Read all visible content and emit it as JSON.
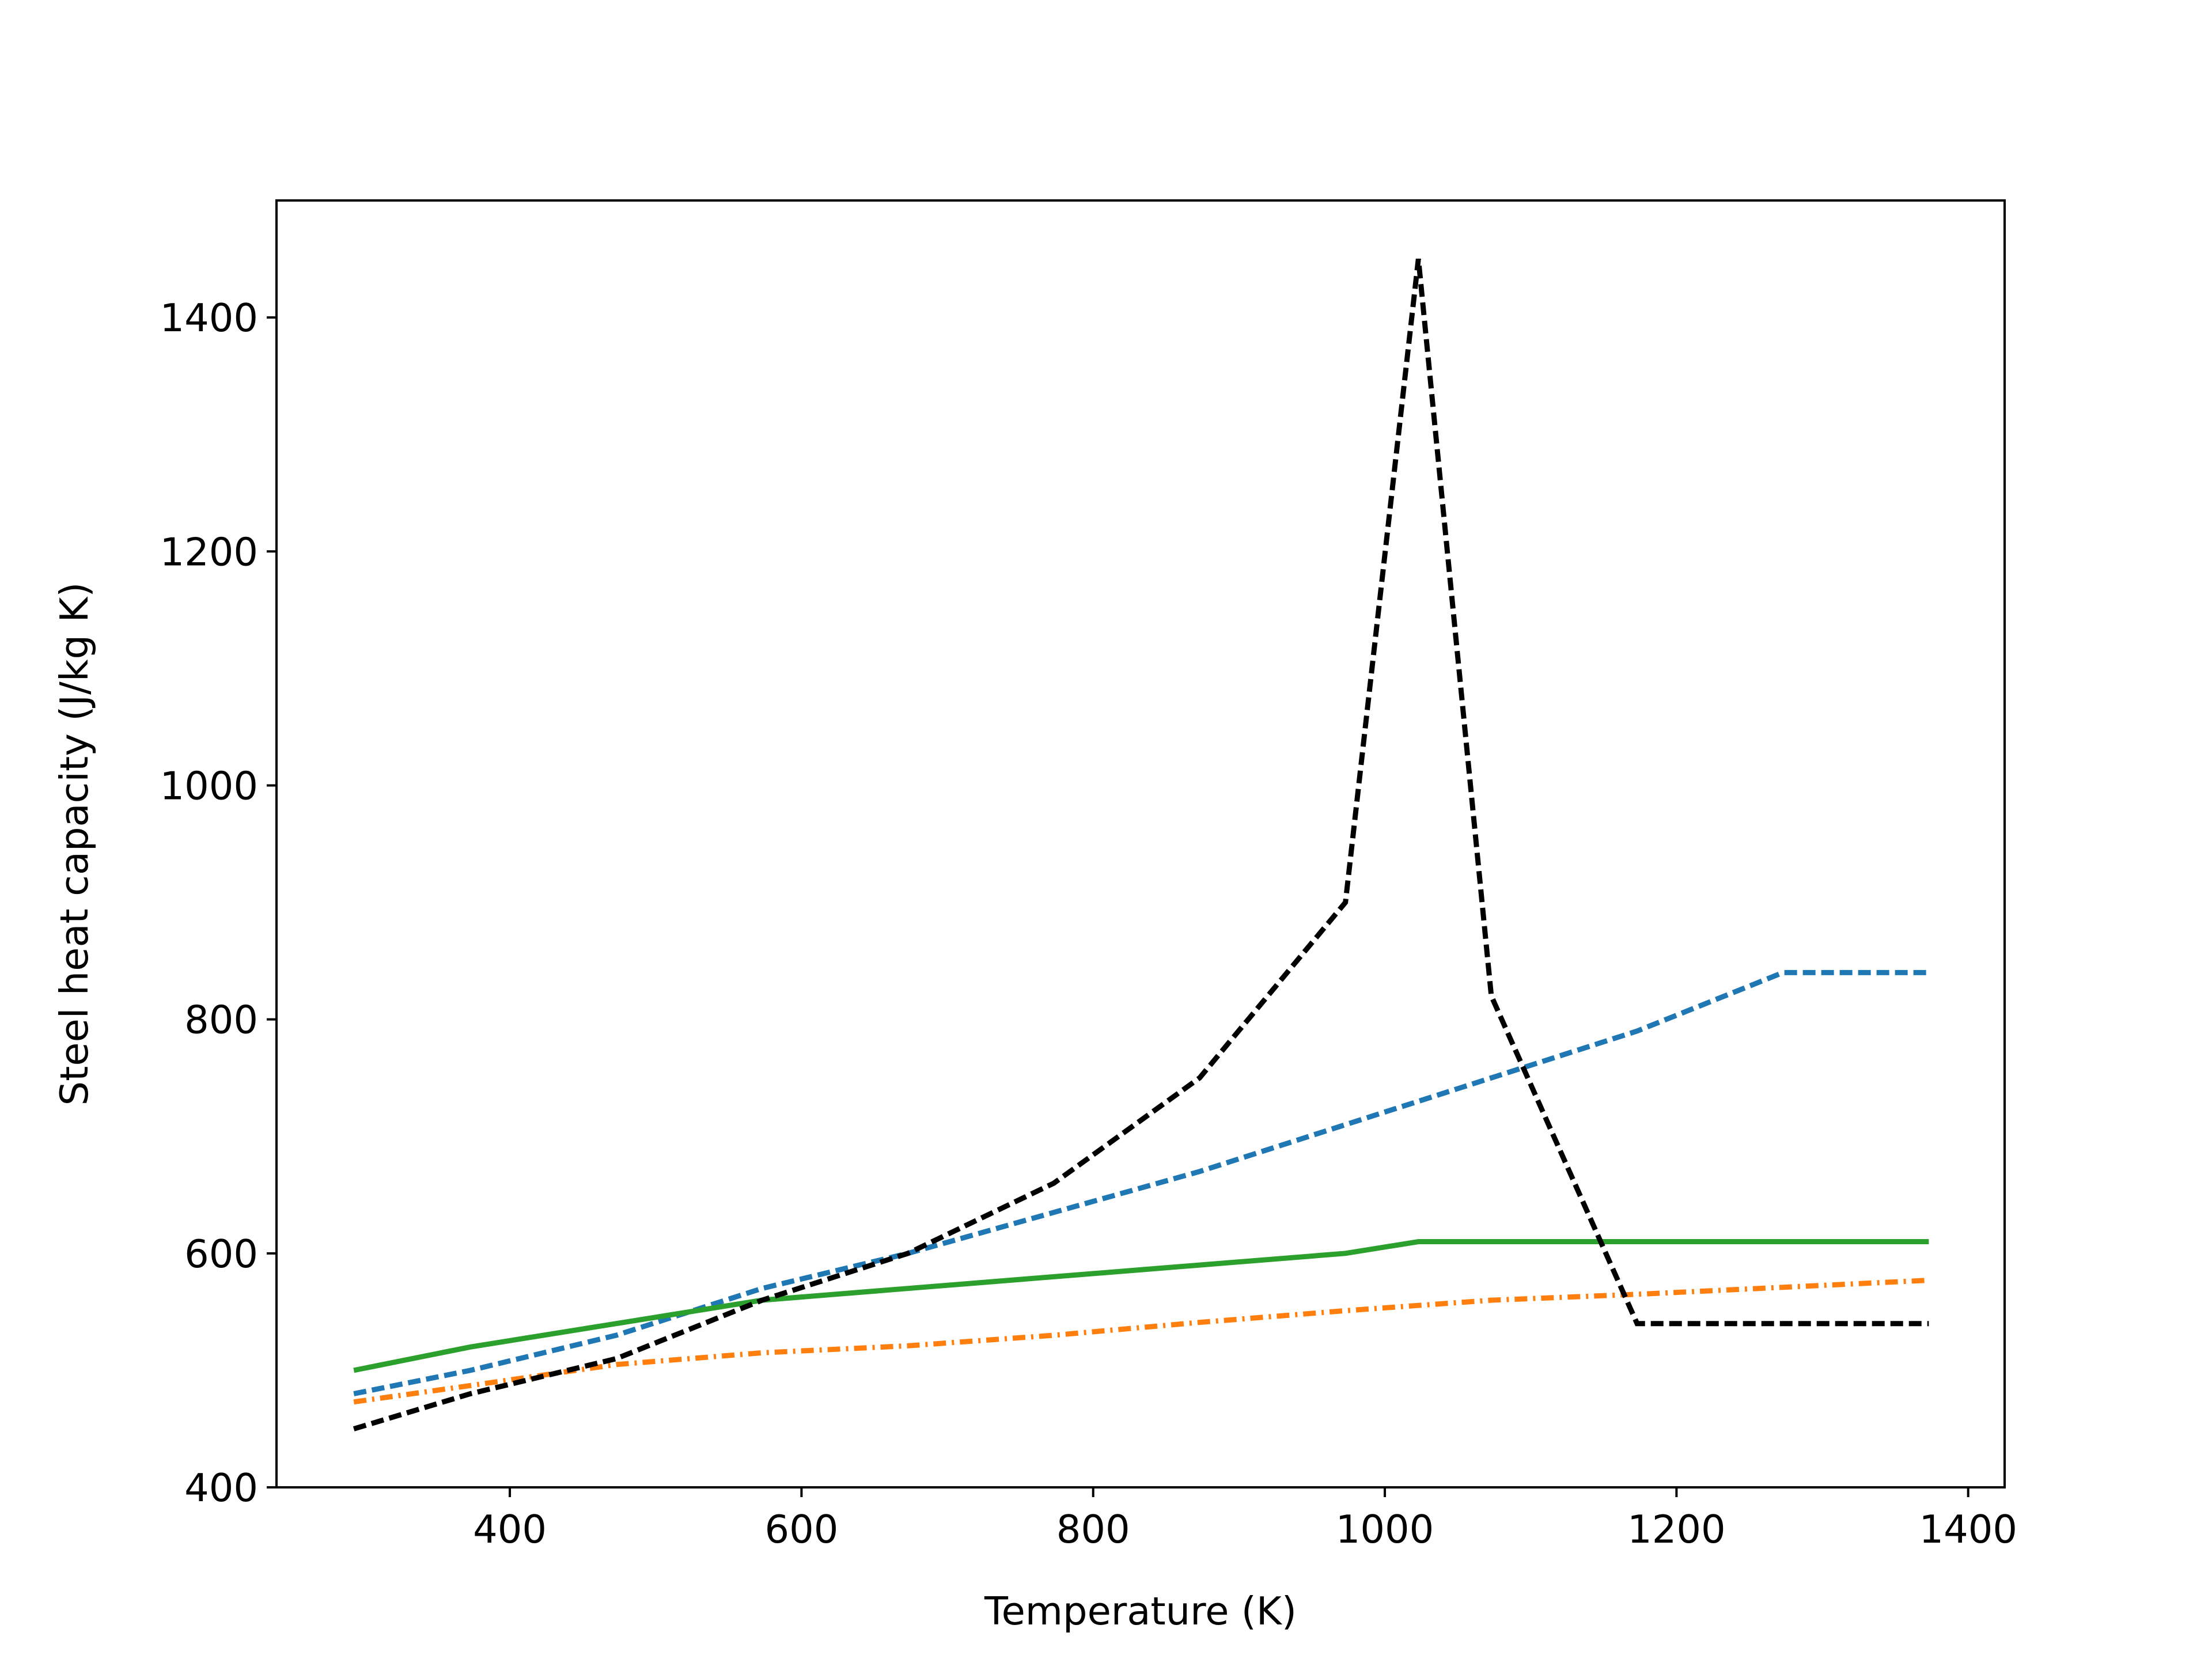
{
  "chart_data": {
    "type": "line",
    "title": "",
    "xlabel": "Temperature (K)",
    "ylabel": "Steel heat capacity (J/kg K)",
    "xlim": [
      240,
      1425
    ],
    "ylim": [
      400,
      1500
    ],
    "xticks": [
      400,
      600,
      800,
      1000,
      1200,
      1400
    ],
    "yticks": [
      400,
      600,
      800,
      1000,
      1200,
      1400
    ],
    "grid": false,
    "legend": "none",
    "series": [
      {
        "color": "#1f77b4",
        "linestyle": "dashed",
        "x": [
          293,
          373,
          473,
          573,
          673,
          773,
          873,
          973,
          1073,
          1173,
          1273,
          1373
        ],
        "y": [
          480,
          500,
          530,
          570,
          600,
          635,
          670,
          710,
          750,
          790,
          840,
          840
        ]
      },
      {
        "color": "#ff7f0e",
        "linestyle": "dashdot",
        "x": [
          293,
          373,
          473,
          573,
          673,
          773,
          873,
          973,
          1073,
          1173,
          1273,
          1373
        ],
        "y": [
          473,
          487,
          505,
          515,
          521,
          530,
          541,
          551,
          560,
          565,
          571,
          577
        ]
      },
      {
        "color": "#2ca02c",
        "linestyle": "solid",
        "x": [
          293,
          373,
          473,
          573,
          673,
          773,
          873,
          973,
          1023,
          1073,
          1173,
          1273,
          1373
        ],
        "y": [
          500,
          520,
          540,
          560,
          570,
          580,
          590,
          600,
          610,
          610,
          610,
          610,
          610
        ]
      },
      {
        "color": "#000000",
        "linestyle": "dashed",
        "x": [
          293,
          373,
          473,
          573,
          673,
          773,
          873,
          973,
          1023,
          1073,
          1173,
          1273,
          1373
        ],
        "y": [
          450,
          480,
          510,
          560,
          600,
          660,
          750,
          900,
          1450,
          820,
          540,
          540,
          540
        ]
      }
    ]
  }
}
